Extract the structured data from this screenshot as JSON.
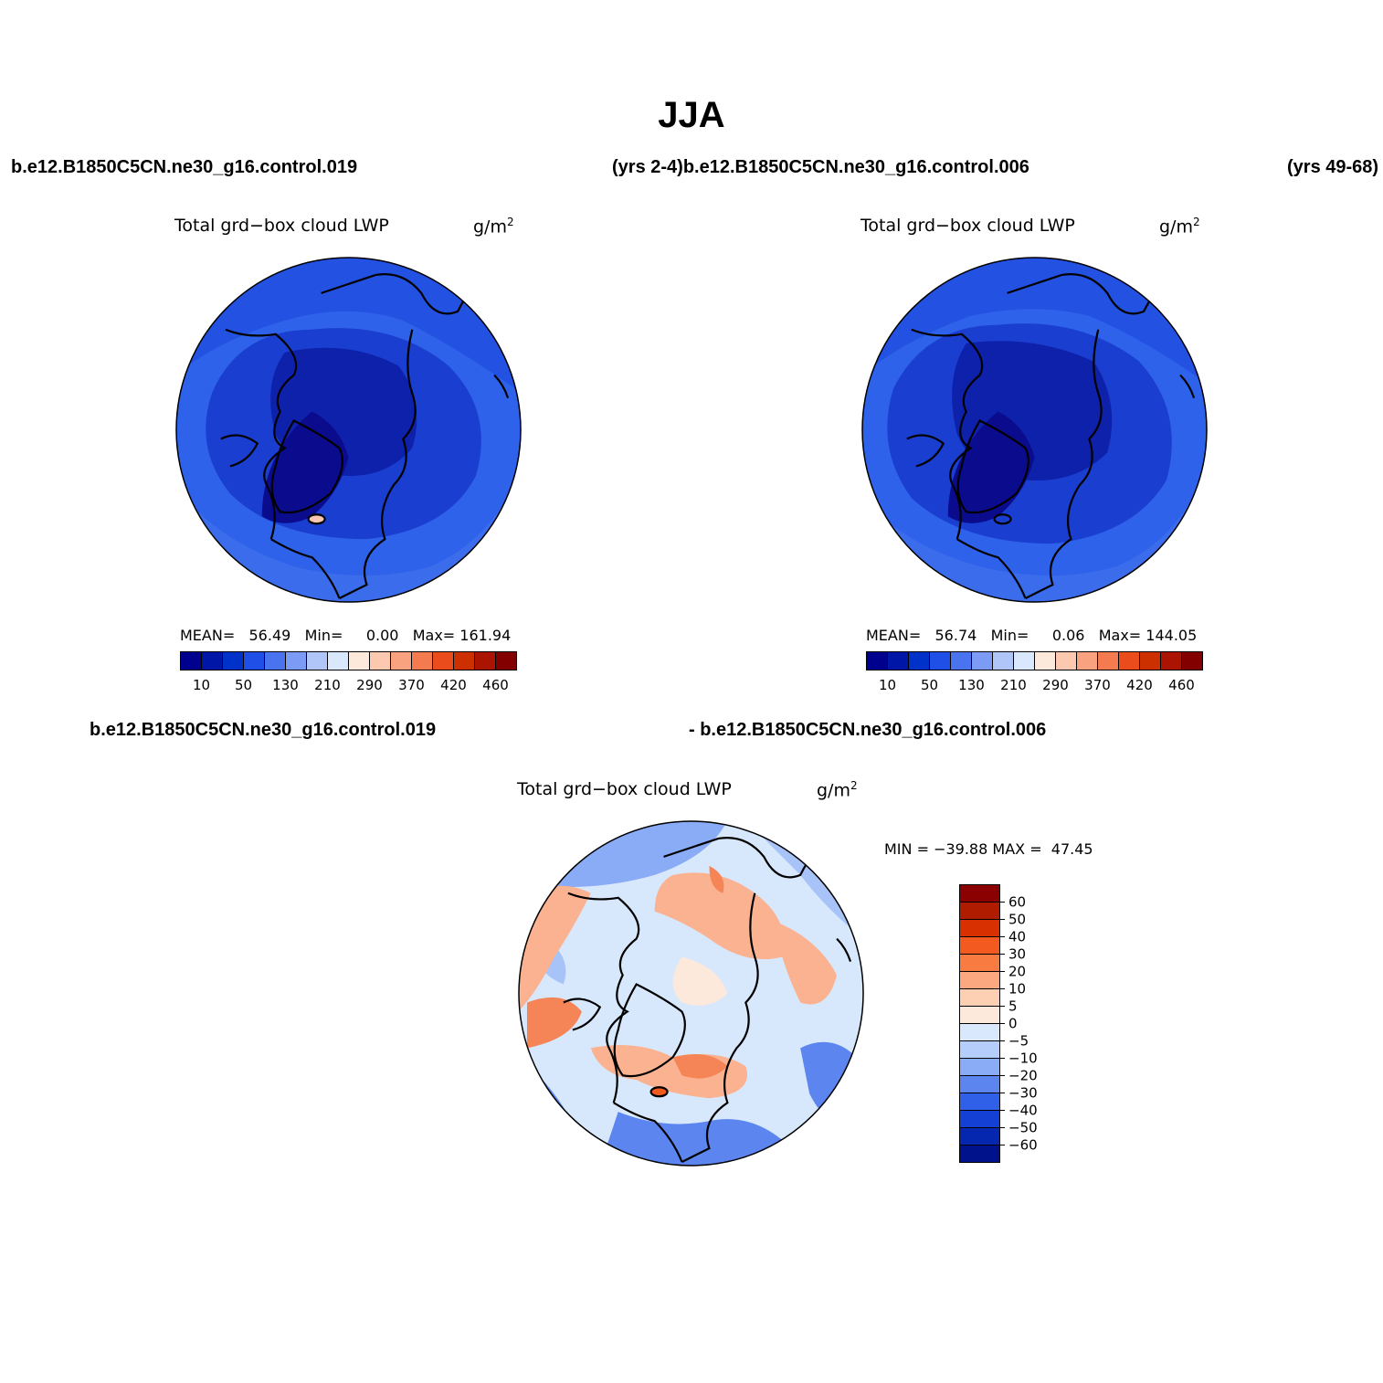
{
  "figure": {
    "title": "JJA",
    "headers": {
      "left_case": "b.e12.B1850C5CN.ne30_g16.control.019",
      "left_years_and_right_case": "(yrs 2-4)b.e12.B1850C5CN.ne30_g16.control.006",
      "right_years": "(yrs 49-68)",
      "diff_case_a": "b.e12.B1850C5CN.ne30_g16.control.019",
      "diff_case_b": "- b.e12.B1850C5CN.ne30_g16.control.006"
    }
  },
  "panels": [
    {
      "id": "case1",
      "variable": "Total grd−box cloud LWP",
      "units_base": "g/m",
      "units_exp": "2",
      "stats": {
        "mean_label": "MEAN=",
        "mean": "56.49",
        "min_label": "Min=",
        "min": "0.00",
        "max_label": "Max=",
        "max": "161.94"
      },
      "colorbar": {
        "colors": [
          "#00008f",
          "#0016a6",
          "#0031c9",
          "#1f4fe6",
          "#4a73ef",
          "#7c9bf4",
          "#b0c6f8",
          "#d9e8fd",
          "#fde9dc",
          "#fcc8b0",
          "#f9a27f",
          "#f47a50",
          "#ea4c1c",
          "#cc3000",
          "#ab1400",
          "#830000"
        ],
        "tick_labels": [
          "10",
          "50",
          "130",
          "210",
          "290",
          "370",
          "420",
          "460"
        ]
      }
    },
    {
      "id": "case2",
      "variable": "Total grd−box cloud LWP",
      "units_base": "g/m",
      "units_exp": "2",
      "stats": {
        "mean_label": "MEAN=",
        "mean": "56.74",
        "min_label": "Min=",
        "min": "0.06",
        "max_label": "Max=",
        "max": "144.05"
      },
      "colorbar": {
        "colors": [
          "#00008f",
          "#0016a6",
          "#0031c9",
          "#1f4fe6",
          "#4a73ef",
          "#7c9bf4",
          "#b0c6f8",
          "#d9e8fd",
          "#fde9dc",
          "#fcc8b0",
          "#f9a27f",
          "#f47a50",
          "#ea4c1c",
          "#cc3000",
          "#ab1400",
          "#830000"
        ],
        "tick_labels": [
          "10",
          "50",
          "130",
          "210",
          "290",
          "370",
          "420",
          "460"
        ]
      }
    },
    {
      "id": "difference",
      "variable": "Total grd−box cloud LWP",
      "units_base": "g/m",
      "units_exp": "2",
      "stats": {
        "min_label": "MIN =",
        "min": "−39.88",
        "max_label": "MAX =",
        "max": "47.45"
      },
      "colorbar": {
        "colors_top_to_bottom": [
          "#8b0000",
          "#b01c00",
          "#d83000",
          "#f25a1f",
          "#f87c42",
          "#fba77f",
          "#fdd0b4",
          "#fde8dc",
          "#d9e8fd",
          "#b5cdfa",
          "#8aabf6",
          "#5c85f0",
          "#3060e8",
          "#1440d6",
          "#0526ae",
          "#00118c"
        ],
        "tick_labels": [
          "60",
          "50",
          "40",
          "30",
          "20",
          "10",
          "5",
          "0",
          "−5",
          "−10",
          "−20",
          "−30",
          "−40",
          "−50",
          "−60"
        ]
      }
    }
  ],
  "maps": {
    "case1": {
      "palette": [
        "#0b0b8e",
        "#0e21ab",
        "#1a3fd0",
        "#2352e3",
        "#2f62ea",
        "#f7c7b4"
      ]
    },
    "case2": {
      "palette": [
        "#0b0b8e",
        "#0e21ab",
        "#1a3fd0",
        "#2352e3",
        "#2f62ea",
        "#f7c7b4"
      ]
    },
    "difference": {
      "palette": [
        "#d7e8fd",
        "#fde8dc",
        "#fbb290",
        "#f58456",
        "#a8c3f7",
        "#5c85f0",
        "#2d5ae2"
      ]
    }
  }
}
